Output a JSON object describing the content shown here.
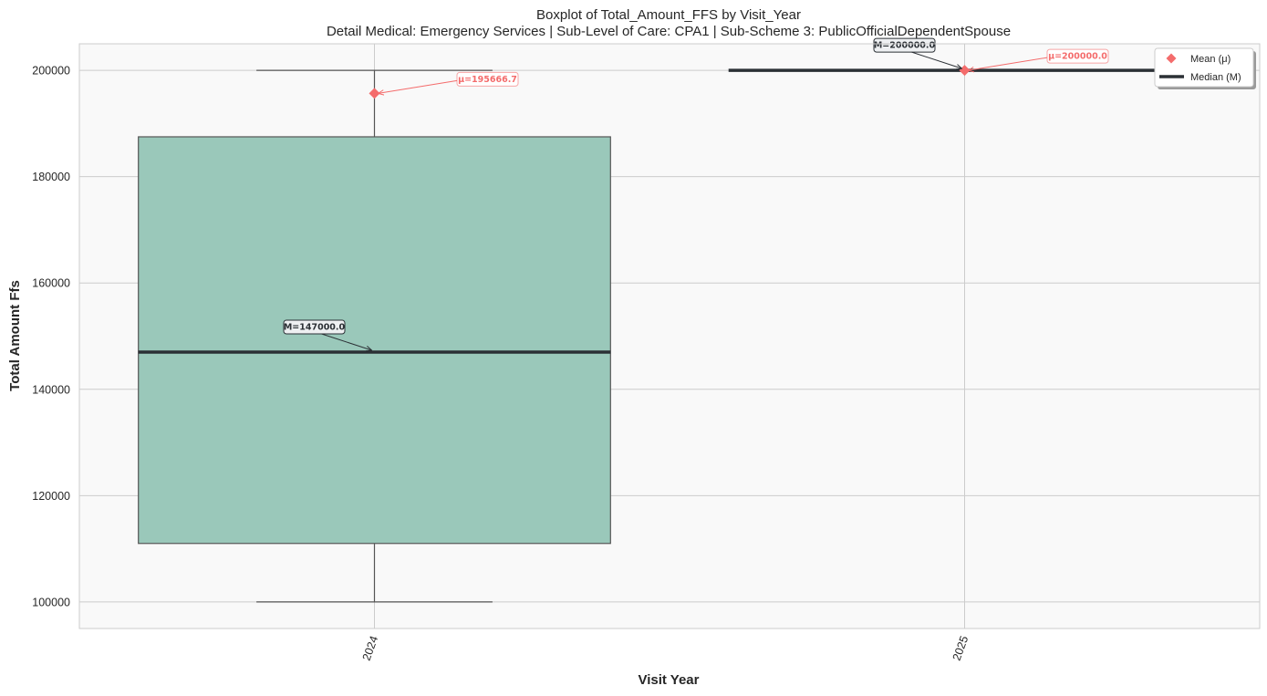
{
  "chart_data": {
    "type": "box",
    "title": "Boxplot of Total_Amount_FFS by Visit_Year",
    "subtitle": "Detail Medical: Emergency Services | Sub-Level of Care: CPA1 | Sub-Scheme 3: PublicOfficialDependentSpouse",
    "xlabel": "Visit Year",
    "ylabel": "Total Amount Ffs",
    "ylim": [
      95000,
      205000
    ],
    "yticks": [
      100000,
      120000,
      140000,
      160000,
      180000,
      200000
    ],
    "grid": true,
    "legend_position": "top-right",
    "categories": [
      "2024",
      "2025"
    ],
    "boxes": [
      {
        "category": "2024",
        "whisker_low": 100000,
        "q1": 111000,
        "median": 147000,
        "q3": 187500,
        "whisker_high": 200000,
        "mean": 195666.7,
        "median_label": "M=147000.0",
        "mean_label": "μ=195666.7"
      },
      {
        "category": "2025",
        "whisker_low": 200000,
        "q1": 200000,
        "median": 200000,
        "q3": 200000,
        "whisker_high": 200000,
        "mean": 200000,
        "median_label": "M=200000.0",
        "mean_label": "μ=200000.0"
      }
    ],
    "legend": [
      {
        "label": "Mean (μ)",
        "marker": "diamond"
      },
      {
        "label": "Median (M)",
        "marker": "line"
      }
    ],
    "colors": {
      "box_fill": "#9ac8ba",
      "box_edge": "#555555",
      "median": "#2b3035",
      "mean": "#f46c6c",
      "grid": "#cccccc",
      "plot_bg": "#f9f9f9"
    }
  }
}
